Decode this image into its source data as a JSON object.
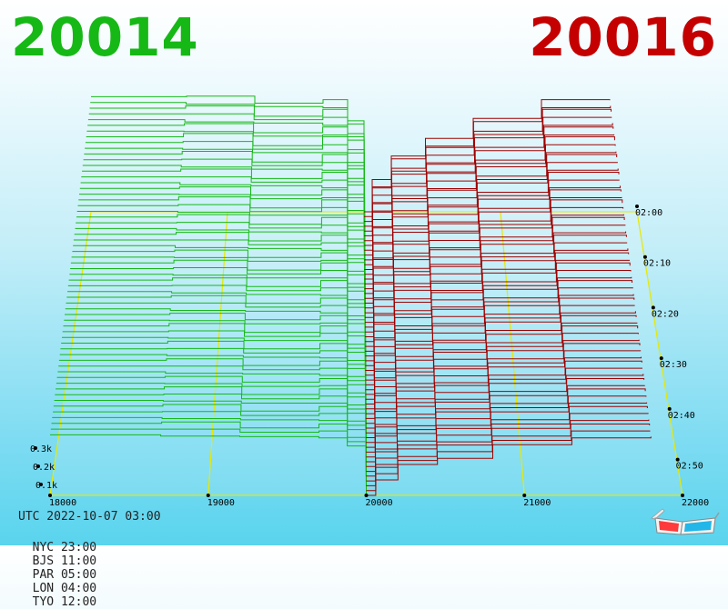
{
  "header": {
    "bid_price": "20014",
    "ask_price": "20016",
    "colors": {
      "bid": "#16b816",
      "ask": "#c40000"
    }
  },
  "clock": {
    "utc": "UTC 2022-10-07 03:00",
    "cities": [
      {
        "label": "NYC 23:00"
      },
      {
        "label": "BJS 11:00"
      },
      {
        "label": "PAR 05:00"
      },
      {
        "label": "LON 04:00"
      },
      {
        "label": "TYO 12:00"
      }
    ]
  },
  "chart_data": {
    "type": "area",
    "title": "",
    "xlabel": "",
    "ylabel": "",
    "x_ticks": [
      "18000",
      "19000",
      "20000",
      "21000",
      "22000"
    ],
    "xlim": [
      18000,
      22000
    ],
    "z_ticks": [
      "0.1k",
      "0.2k",
      "0.3k"
    ],
    "t_ticks": [
      "02:00",
      "02:10",
      "02:20",
      "02:30",
      "02:40",
      "02:50"
    ],
    "snapshots": 60,
    "grid": true,
    "series": [
      {
        "side": "bid",
        "color": "#16b816",
        "steps": [
          [
            18000,
            0.98
          ],
          [
            18700,
            0.96
          ],
          [
            19200,
            0.95
          ],
          [
            19700,
            0.93
          ],
          [
            19880,
            0.8
          ],
          [
            20000,
            0.0
          ]
        ]
      },
      {
        "side": "ask",
        "color": "#a00000",
        "steps": [
          [
            20000,
            0.0
          ],
          [
            20060,
            0.25
          ],
          [
            20200,
            0.5
          ],
          [
            20450,
            0.6
          ],
          [
            20800,
            0.82
          ],
          [
            21300,
            0.93
          ],
          [
            21800,
            0.95
          ]
        ]
      }
    ]
  },
  "icons": {
    "glasses": "3d-glasses-icon"
  }
}
